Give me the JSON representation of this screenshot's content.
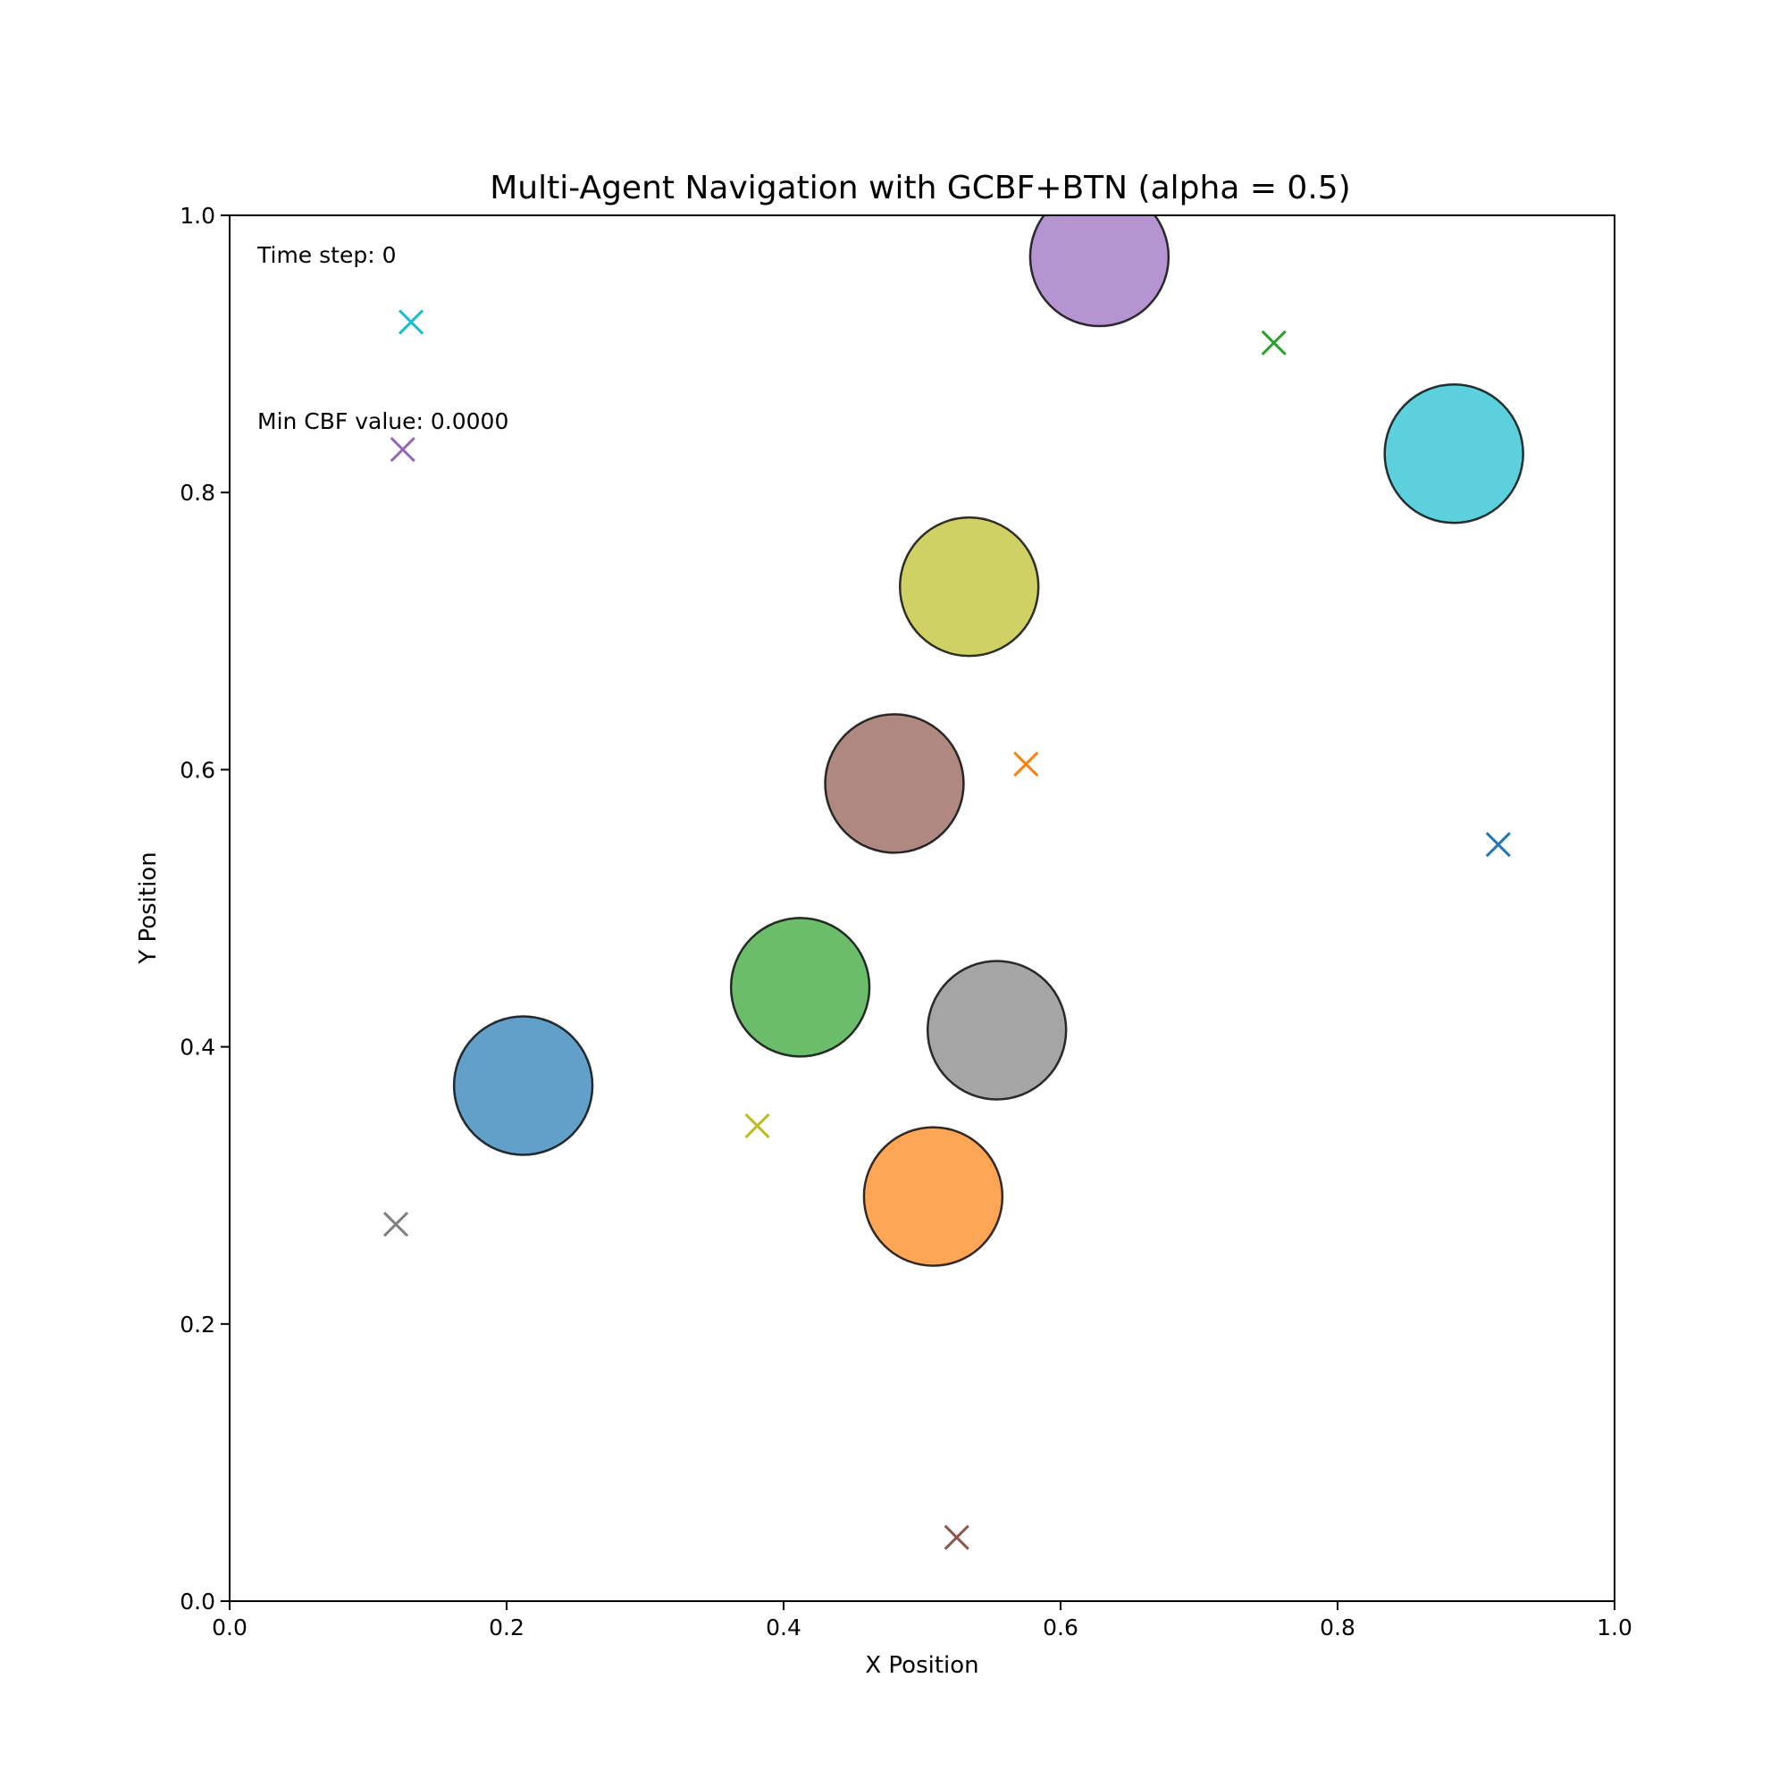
{
  "chart_data": {
    "type": "scatter",
    "title": "Multi-Agent Navigation with GCBF+BTN (alpha = 0.5)",
    "xlabel": "X Position",
    "ylabel": "Y Position",
    "xlim": [
      0.0,
      1.0
    ],
    "ylim": [
      0.0,
      1.0
    ],
    "x_ticks": [
      0.0,
      0.2,
      0.4,
      0.6,
      0.8,
      1.0
    ],
    "y_ticks": [
      0.0,
      0.2,
      0.4,
      0.6,
      0.8,
      1.0
    ],
    "x_tick_labels": [
      "0.0",
      "0.2",
      "0.4",
      "0.6",
      "0.8",
      "1.0"
    ],
    "y_tick_labels": [
      "0.0",
      "0.2",
      "0.4",
      "0.6",
      "0.8",
      "1.0"
    ],
    "grid": false,
    "agent_radius": 0.05,
    "annotations": {
      "time_step": "Time step: 0",
      "min_cbf": "Min CBF value: 0.0000"
    },
    "agents": [
      {
        "color": "#1f77b4",
        "x": 0.212,
        "y": 0.372
      },
      {
        "color": "#ff7f0e",
        "x": 0.508,
        "y": 0.292
      },
      {
        "color": "#2ca02c",
        "x": 0.412,
        "y": 0.443
      },
      {
        "color": "#8c564b",
        "x": 0.48,
        "y": 0.59
      },
      {
        "color": "#9467bd",
        "x": 0.628,
        "y": 0.97
      },
      {
        "color": "#bcbd22",
        "x": 0.534,
        "y": 0.732
      },
      {
        "color": "#7f7f7f",
        "x": 0.554,
        "y": 0.412
      },
      {
        "color": "#17becf",
        "x": 0.884,
        "y": 0.828
      }
    ],
    "goals": [
      {
        "color": "#1f77b4",
        "x": 0.916,
        "y": 0.546
      },
      {
        "color": "#ff7f0e",
        "x": 0.575,
        "y": 0.604
      },
      {
        "color": "#2ca02c",
        "x": 0.754,
        "y": 0.908
      },
      {
        "color": "#8c564b",
        "x": 0.525,
        "y": 0.046
      },
      {
        "color": "#9467bd",
        "x": 0.125,
        "y": 0.831
      },
      {
        "color": "#bcbd22",
        "x": 0.381,
        "y": 0.343
      },
      {
        "color": "#7f7f7f",
        "x": 0.12,
        "y": 0.272
      },
      {
        "color": "#17becf",
        "x": 0.131,
        "y": 0.923
      }
    ]
  }
}
